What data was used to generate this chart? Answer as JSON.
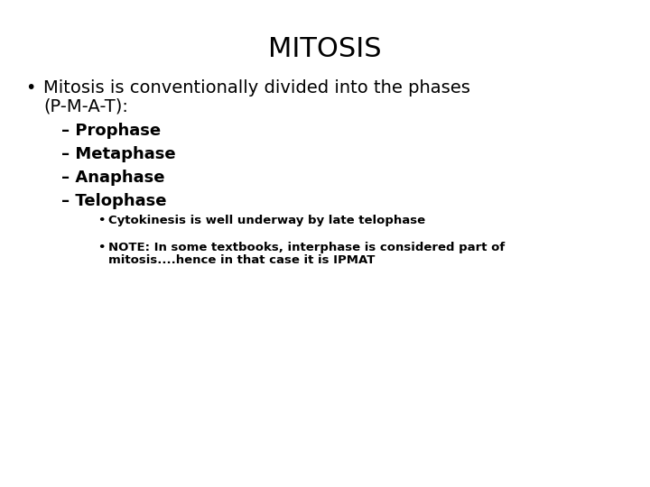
{
  "title": "MITOSIS",
  "background_color": "#ffffff",
  "text_color": "#000000",
  "title_fontsize": 22,
  "body_fontsize": 14,
  "dash_fontsize": 13,
  "note_fontsize": 9.5,
  "bullet1_line1": "Mitosis is conventionally divided into the phases",
  "bullet1_line2": "(P-M-A-T):",
  "dash_items": [
    "– Prophase",
    "– Metaphase",
    "– Anaphase",
    "– Telophase"
  ],
  "sub_bullet1": "Cytokinesis is well underway by late telophase",
  "sub_bullet2_line1": "NOTE: In some textbooks, interphase is considered part of",
  "sub_bullet2_line2": "mitosis....hence in that case it is IPMAT"
}
